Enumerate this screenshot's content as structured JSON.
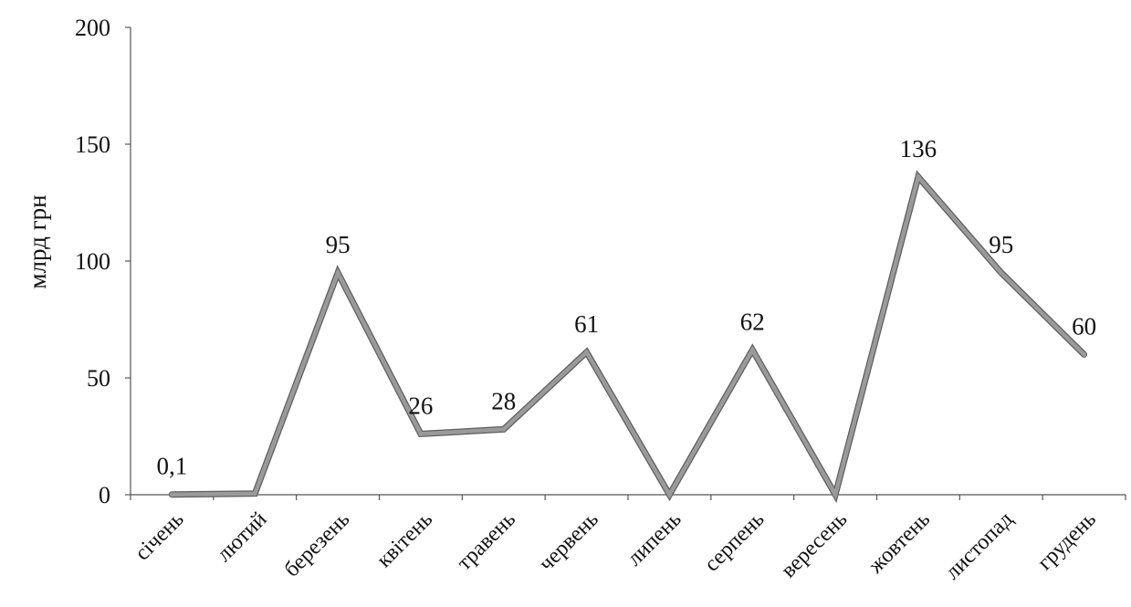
{
  "chart_data": {
    "type": "line",
    "title": "",
    "xlabel": "",
    "ylabel": "млрд грн",
    "ylim": [
      0,
      200
    ],
    "yticks": [
      0,
      50,
      100,
      150,
      200
    ],
    "grid": false,
    "legend": "none",
    "categories": [
      "січень",
      "лютий",
      "березень",
      "квітень",
      "травень",
      "червень",
      "липень",
      "серпень",
      "вересень",
      "жовтень",
      "листопад",
      "грудень"
    ],
    "series": [
      {
        "values": [
          0.1,
          0.5,
          95,
          26,
          28,
          61,
          0,
          62,
          0,
          136,
          95,
          60
        ],
        "color": "#9a9a9a"
      }
    ],
    "data_labels": [
      {
        "index": 0,
        "text": "0,1"
      },
      {
        "index": 2,
        "text": "95"
      },
      {
        "index": 3,
        "text": "26"
      },
      {
        "index": 4,
        "text": "28"
      },
      {
        "index": 5,
        "text": "61"
      },
      {
        "index": 7,
        "text": "62"
      },
      {
        "index": 9,
        "text": "136"
      },
      {
        "index": 10,
        "text": "95"
      },
      {
        "index": 11,
        "text": "60"
      }
    ]
  }
}
